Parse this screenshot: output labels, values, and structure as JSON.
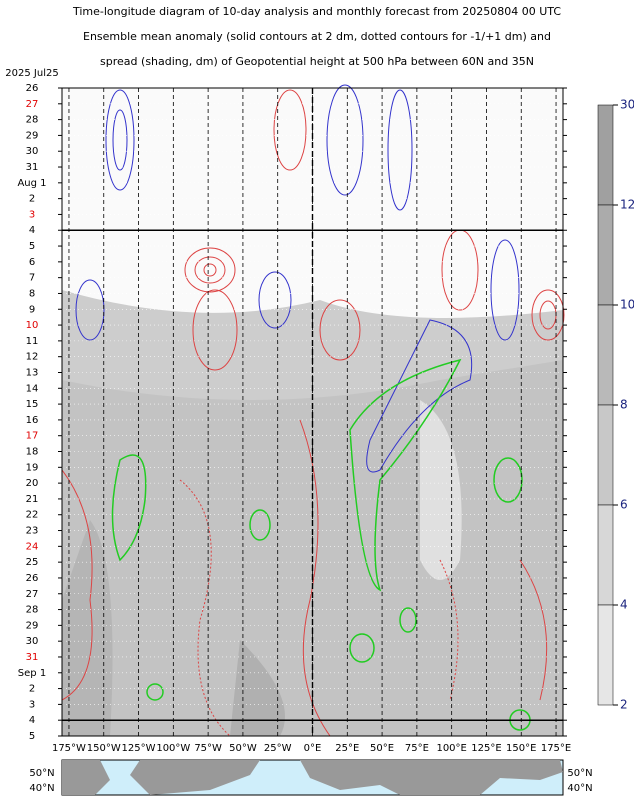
{
  "chart_data": {
    "type": "hovmoller",
    "title_lines": [
      "Time-longitude diagram of 10-day analysis and monthly forecast from 20250804 00 UTC",
      "Ensemble mean anomaly (solid contours at 2 dm, dotted contours for -1/+1 dm) and",
      "spread (shading, dm) of Geopotential height at 500 hPa between 60N and 35N"
    ],
    "date_header": "2025  Jul25",
    "dates": [
      "26",
      "27",
      "28",
      "29",
      "30",
      "31",
      "Aug 1",
      "2",
      "3",
      "4",
      "5",
      "6",
      "7",
      "8",
      "9",
      "10",
      "11",
      "12",
      "13",
      "14",
      "15",
      "16",
      "17",
      "18",
      "19",
      "20",
      "21",
      "22",
      "23",
      "24",
      "25",
      "26",
      "27",
      "28",
      "29",
      "30",
      "31",
      "Sep 1",
      "2",
      "3",
      "4",
      "5"
    ],
    "date_colors": [
      "#000",
      "#e00000",
      "#000",
      "#000",
      "#000",
      "#000",
      "#000",
      "#000",
      "#e00000",
      "#000",
      "#000",
      "#000",
      "#000",
      "#000",
      "#000",
      "#e00000",
      "#000",
      "#000",
      "#000",
      "#000",
      "#000",
      "#000",
      "#e00000",
      "#000",
      "#000",
      "#000",
      "#000",
      "#000",
      "#000",
      "#e00000",
      "#000",
      "#000",
      "#000",
      "#000",
      "#000",
      "#000",
      "#e00000",
      "#000",
      "#000",
      "#000",
      "#000",
      "#000"
    ],
    "analysis_end": "4",
    "xlim": [
      -180,
      180
    ],
    "xticks": [
      {
        "value": -175,
        "label": "175°W"
      },
      {
        "value": -150,
        "label": "150°W"
      },
      {
        "value": -125,
        "label": "125°W"
      },
      {
        "value": -100,
        "label": "100°W"
      },
      {
        "value": -75,
        "label": "75°W"
      },
      {
        "value": -50,
        "label": "50°W"
      },
      {
        "value": -25,
        "label": "25°W"
      },
      {
        "value": 0,
        "label": "0°E"
      },
      {
        "value": 25,
        "label": "25°E"
      },
      {
        "value": 50,
        "label": "50°E"
      },
      {
        "value": 75,
        "label": "75°E"
      },
      {
        "value": 100,
        "label": "100°E"
      },
      {
        "value": 125,
        "label": "125°E"
      },
      {
        "value": 150,
        "label": "150°E"
      },
      {
        "value": 175,
        "label": "175°E"
      }
    ],
    "colorbar": {
      "levels": [
        30,
        12,
        10,
        8,
        6,
        4,
        2
      ],
      "colors": [
        "#a0a0a0",
        "#ababab",
        "#b9b9b9",
        "#c8c8c8",
        "#d7d7d7",
        "#e6e6e6"
      ]
    },
    "map_labels": [
      "50°N",
      "40°N"
    ]
  }
}
